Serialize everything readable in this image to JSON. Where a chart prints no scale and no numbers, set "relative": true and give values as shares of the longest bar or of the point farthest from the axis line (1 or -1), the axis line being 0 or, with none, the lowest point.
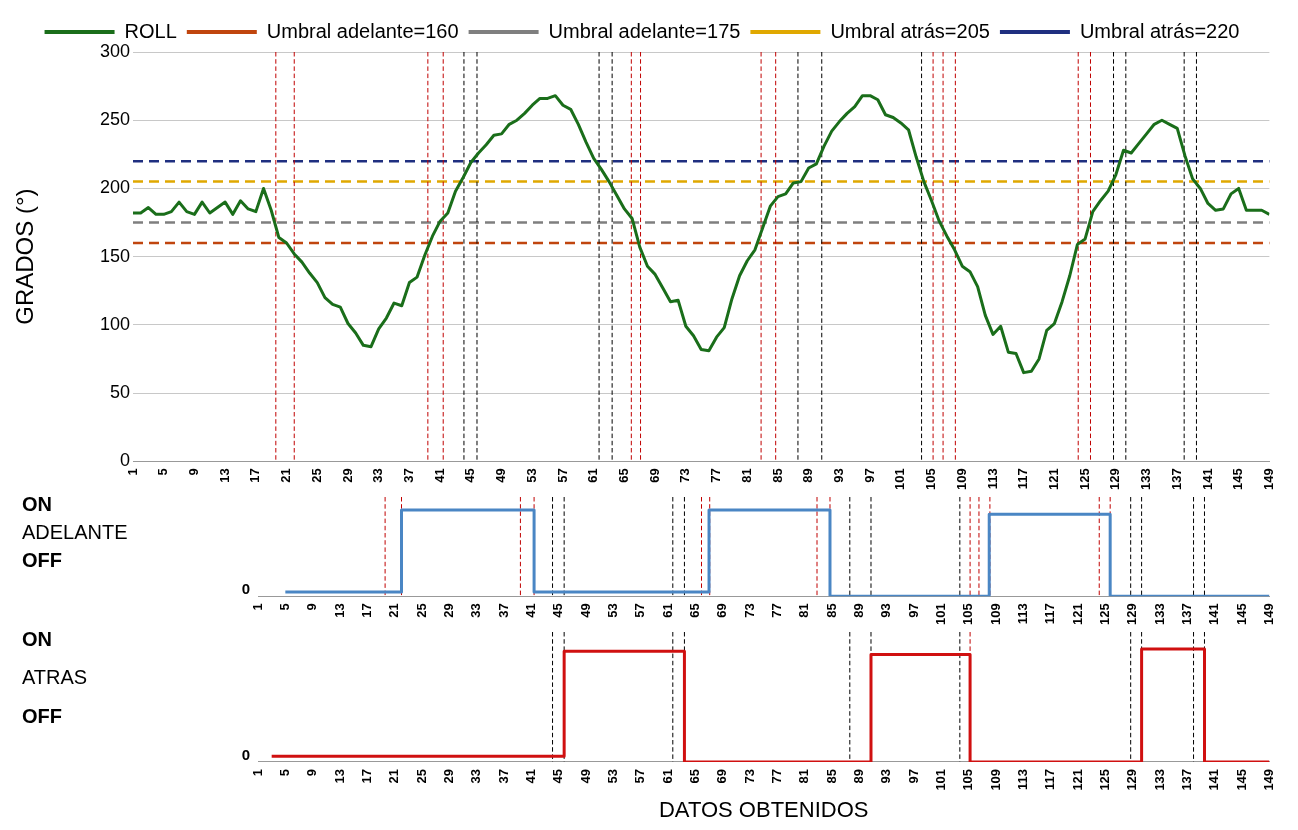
{
  "chart_data": [
    {
      "type": "line",
      "ylabel": "GRADOS (°)",
      "legend": "top",
      "grid": "y",
      "marker": "none",
      "x": [
        1,
        2,
        3,
        4,
        5,
        6,
        7,
        8,
        9,
        10,
        11,
        12,
        13,
        14,
        15,
        16,
        17,
        18,
        19,
        20,
        21,
        22,
        23,
        24,
        25,
        26,
        27,
        28,
        29,
        30,
        31,
        32,
        33,
        34,
        35,
        36,
        37,
        38,
        39,
        40,
        41,
        42,
        43,
        44,
        45,
        46,
        47,
        48,
        49,
        50,
        51,
        52,
        53,
        54,
        55,
        56,
        57,
        58,
        59,
        60,
        61,
        62,
        63,
        64,
        65,
        66,
        67,
        68,
        69,
        70,
        71,
        72,
        73,
        74,
        75,
        76,
        77,
        78,
        79,
        80,
        81,
        82,
        83,
        84,
        85,
        86,
        87,
        88,
        89,
        90,
        91,
        92,
        93,
        94,
        95,
        96,
        97,
        98,
        99,
        100,
        101,
        102,
        103,
        104,
        105,
        106,
        107,
        108,
        109,
        110,
        111,
        112,
        113,
        114,
        115,
        116,
        117,
        118,
        119,
        120,
        121,
        122,
        123,
        124,
        125,
        126,
        127,
        128,
        129,
        130,
        131,
        132,
        133,
        134,
        135,
        136,
        137,
        138,
        139,
        140,
        141,
        142,
        143,
        144,
        145,
        146,
        147,
        148,
        149
      ],
      "series": [
        {
          "name": "ROLL",
          "color": "#1a6e1a",
          "values": [
            182,
            182,
            186,
            181,
            181,
            183,
            190,
            183,
            181,
            190,
            182,
            186,
            190,
            181,
            191,
            185,
            183,
            200,
            184,
            164,
            160,
            152,
            146,
            138,
            131,
            120,
            115,
            113,
            101,
            94,
            85,
            84,
            97,
            105,
            116,
            114,
            131,
            135,
            151,
            165,
            176,
            182,
            198,
            208,
            219,
            226,
            232,
            239,
            240,
            247,
            250,
            255,
            261,
            266,
            266,
            268,
            261,
            258,
            247,
            234,
            222,
            214,
            205,
            195,
            185,
            178,
            157,
            143,
            137,
            127,
            117,
            118,
            99,
            92,
            82,
            81,
            91,
            98,
            119,
            136,
            147,
            155,
            171,
            187,
            194,
            196,
            204,
            205,
            215,
            218,
            231,
            242,
            249,
            255,
            260,
            268,
            268,
            265,
            254,
            252,
            248,
            243,
            223,
            205,
            191,
            176,
            165,
            155,
            143,
            139,
            128,
            107,
            93,
            99,
            80,
            79,
            65,
            66,
            75,
            96,
            101,
            117,
            136,
            159,
            163,
            183,
            191,
            198,
            210,
            228,
            226,
            233,
            240,
            247,
            250,
            247,
            244,
            224,
            207,
            200,
            189,
            184,
            185,
            196,
            200,
            184,
            184,
            184,
            181
          ]
        }
      ],
      "xlim": [
        1,
        149
      ],
      "xticks": [
        1,
        5,
        9,
        13,
        17,
        21,
        25,
        29,
        33,
        37,
        41,
        45,
        49,
        53,
        57,
        61,
        65,
        69,
        73,
        77,
        81,
        85,
        89,
        93,
        97,
        101,
        105,
        109,
        113,
        117,
        121,
        125,
        129,
        133,
        137,
        141,
        145,
        149
      ],
      "ylim": [
        0,
        300
      ],
      "yticks": [
        0,
        50,
        100,
        150,
        200,
        250,
        300
      ],
      "ref_lines": [
        {
          "axis": "y",
          "value": 160,
          "label": "Umbral adelante=160",
          "color": "#c0450e",
          "line_style": "dashed"
        },
        {
          "axis": "y",
          "value": 175,
          "label": "Umbral adelante=175",
          "color": "#7f7f7f",
          "line_style": "dashed"
        },
        {
          "axis": "y",
          "value": 205,
          "label": "Umbral atrás=205",
          "color": "#e0a800",
          "line_style": "dashed"
        },
        {
          "axis": "y",
          "value": 220,
          "label": "Umbral atrás=220",
          "color": "#1f2f80",
          "line_style": "dashed"
        },
        {
          "axis": "x",
          "value": 19.6,
          "color": "#c00000",
          "line_style": "dashed"
        },
        {
          "axis": "x",
          "value": 22,
          "color": "#c00000",
          "line_style": "dashed"
        },
        {
          "axis": "x",
          "value": 39.4,
          "color": "#c00000",
          "line_style": "dashed"
        },
        {
          "axis": "x",
          "value": 41.4,
          "color": "#c00000",
          "line_style": "dashed"
        },
        {
          "axis": "x",
          "value": 44.1,
          "color": "#000000",
          "line_style": "dashed"
        },
        {
          "axis": "x",
          "value": 45.8,
          "color": "#000000",
          "line_style": "dashed"
        },
        {
          "axis": "x",
          "value": 61.7,
          "color": "#000000",
          "line_style": "dashed"
        },
        {
          "axis": "x",
          "value": 63.4,
          "color": "#000000",
          "line_style": "dashed"
        },
        {
          "axis": "x",
          "value": 65.9,
          "color": "#c00000",
          "line_style": "dashed"
        },
        {
          "axis": "x",
          "value": 67.1,
          "color": "#c00000",
          "line_style": "dashed"
        },
        {
          "axis": "x",
          "value": 82.8,
          "color": "#c00000",
          "line_style": "dashed"
        },
        {
          "axis": "x",
          "value": 84.7,
          "color": "#c00000",
          "line_style": "dashed"
        },
        {
          "axis": "x",
          "value": 87.6,
          "color": "#000000",
          "line_style": "dashed"
        },
        {
          "axis": "x",
          "value": 90.7,
          "color": "#000000",
          "line_style": "dashed"
        },
        {
          "axis": "x",
          "value": 103.7,
          "color": "#000000",
          "line_style": "dashed"
        },
        {
          "axis": "x",
          "value": 105.2,
          "color": "#c00000",
          "line_style": "dashed"
        },
        {
          "axis": "x",
          "value": 106.5,
          "color": "#c00000",
          "line_style": "dashed"
        },
        {
          "axis": "x",
          "value": 108.1,
          "color": "#c00000",
          "line_style": "dashed"
        },
        {
          "axis": "x",
          "value": 124.1,
          "color": "#c00000",
          "line_style": "dashed"
        },
        {
          "axis": "x",
          "value": 125.7,
          "color": "#c00000",
          "line_style": "dashed"
        },
        {
          "axis": "x",
          "value": 128.7,
          "color": "#000000",
          "line_style": "dashed"
        },
        {
          "axis": "x",
          "value": 130.3,
          "color": "#000000",
          "line_style": "dashed"
        },
        {
          "axis": "x",
          "value": 137.9,
          "color": "#000000",
          "line_style": "dashed"
        },
        {
          "axis": "x",
          "value": 139.5,
          "color": "#000000",
          "line_style": "dashed"
        }
      ]
    },
    {
      "type": "step",
      "annotations": [
        "ON",
        "ADELANTE",
        "OFF",
        "0"
      ],
      "marker": "none",
      "relative": true,
      "series": [
        {
          "color": "#4a86c4",
          "x": [
            5,
            22,
            41.4,
            67,
            84.7,
            108,
            125.7,
            149
          ],
          "values": [
            0.05,
            1,
            0.05,
            1,
            0,
            0.95,
            0,
            0
          ]
        }
      ],
      "xlim": [
        1,
        149
      ],
      "xticks": [
        1,
        5,
        9,
        13,
        17,
        21,
        25,
        29,
        33,
        37,
        41,
        45,
        49,
        53,
        57,
        61,
        65,
        69,
        73,
        77,
        81,
        85,
        89,
        93,
        97,
        101,
        105,
        109,
        113,
        117,
        121,
        125,
        129,
        133,
        137,
        141,
        145,
        149
      ],
      "ref_lines": [
        {
          "axis": "x",
          "value": 19.6,
          "color": "#c00000",
          "line_style": "dashed"
        },
        {
          "axis": "x",
          "value": 22,
          "color": "#c00000",
          "line_style": "dashed"
        },
        {
          "axis": "x",
          "value": 39.4,
          "color": "#c00000",
          "line_style": "dashed"
        },
        {
          "axis": "x",
          "value": 41.4,
          "color": "#c00000",
          "line_style": "dashed"
        },
        {
          "axis": "x",
          "value": 44.1,
          "color": "#000000",
          "line_style": "dashed"
        },
        {
          "axis": "x",
          "value": 45.8,
          "color": "#000000",
          "line_style": "dashed"
        },
        {
          "axis": "x",
          "value": 61.7,
          "color": "#000000",
          "line_style": "dashed"
        },
        {
          "axis": "x",
          "value": 63.4,
          "color": "#000000",
          "line_style": "dashed"
        },
        {
          "axis": "x",
          "value": 65.9,
          "color": "#c00000",
          "line_style": "dashed"
        },
        {
          "axis": "x",
          "value": 67.1,
          "color": "#c00000",
          "line_style": "dashed"
        },
        {
          "axis": "x",
          "value": 82.8,
          "color": "#c00000",
          "line_style": "dashed"
        },
        {
          "axis": "x",
          "value": 84.7,
          "color": "#c00000",
          "line_style": "dashed"
        },
        {
          "axis": "x",
          "value": 87.6,
          "color": "#000000",
          "line_style": "dashed"
        },
        {
          "axis": "x",
          "value": 90.7,
          "color": "#000000",
          "line_style": "dashed"
        },
        {
          "axis": "x",
          "value": 103.7,
          "color": "#000000",
          "line_style": "dashed"
        },
        {
          "axis": "x",
          "value": 105.2,
          "color": "#c00000",
          "line_style": "dashed"
        },
        {
          "axis": "x",
          "value": 106.5,
          "color": "#c00000",
          "line_style": "dashed"
        },
        {
          "axis": "x",
          "value": 108.1,
          "color": "#c00000",
          "line_style": "dashed"
        },
        {
          "axis": "x",
          "value": 124.1,
          "color": "#c00000",
          "line_style": "dashed"
        },
        {
          "axis": "x",
          "value": 125.7,
          "color": "#c00000",
          "line_style": "dashed"
        },
        {
          "axis": "x",
          "value": 128.7,
          "color": "#000000",
          "line_style": "dashed"
        },
        {
          "axis": "x",
          "value": 130.3,
          "color": "#000000",
          "line_style": "dashed"
        },
        {
          "axis": "x",
          "value": 137.9,
          "color": "#000000",
          "line_style": "dashed"
        },
        {
          "axis": "x",
          "value": 139.5,
          "color": "#000000",
          "line_style": "dashed"
        }
      ]
    },
    {
      "type": "step",
      "annotations": [
        "ON",
        "ATRAS",
        "OFF",
        "0"
      ],
      "xlabel": "DATOS OBTENIDOS",
      "marker": "none",
      "relative": true,
      "series": [
        {
          "color": "#d01010",
          "x": [
            3,
            45.8,
            63.4,
            90.7,
            105.2,
            130.3,
            139.5,
            149
          ],
          "values": [
            0.05,
            0.98,
            0,
            0.95,
            0,
            1,
            0,
            0
          ]
        }
      ],
      "xlim": [
        1,
        149
      ],
      "xticks": [
        1,
        5,
        9,
        13,
        17,
        21,
        25,
        29,
        33,
        37,
        41,
        45,
        49,
        53,
        57,
        61,
        65,
        69,
        73,
        77,
        81,
        85,
        89,
        93,
        97,
        101,
        105,
        109,
        113,
        117,
        121,
        125,
        129,
        133,
        137,
        141,
        145,
        149
      ],
      "ref_lines": [
        {
          "axis": "x",
          "value": 44.1,
          "color": "#000000",
          "line_style": "dashed"
        },
        {
          "axis": "x",
          "value": 45.8,
          "color": "#000000",
          "line_style": "dashed"
        },
        {
          "axis": "x",
          "value": 61.7,
          "color": "#000000",
          "line_style": "dashed"
        },
        {
          "axis": "x",
          "value": 63.4,
          "color": "#000000",
          "line_style": "dashed"
        },
        {
          "axis": "x",
          "value": 87.6,
          "color": "#000000",
          "line_style": "dashed"
        },
        {
          "axis": "x",
          "value": 90.7,
          "color": "#000000",
          "line_style": "dashed"
        },
        {
          "axis": "x",
          "value": 103.7,
          "color": "#000000",
          "line_style": "dashed"
        },
        {
          "axis": "x",
          "value": 105.2,
          "color": "#c00000",
          "line_style": "dashed"
        },
        {
          "axis": "x",
          "value": 128.7,
          "color": "#000000",
          "line_style": "dashed"
        },
        {
          "axis": "x",
          "value": 130.3,
          "color": "#000000",
          "line_style": "dashed"
        },
        {
          "axis": "x",
          "value": 137.9,
          "color": "#000000",
          "line_style": "dashed"
        },
        {
          "axis": "x",
          "value": 139.5,
          "color": "#000000",
          "line_style": "dashed"
        }
      ]
    }
  ]
}
